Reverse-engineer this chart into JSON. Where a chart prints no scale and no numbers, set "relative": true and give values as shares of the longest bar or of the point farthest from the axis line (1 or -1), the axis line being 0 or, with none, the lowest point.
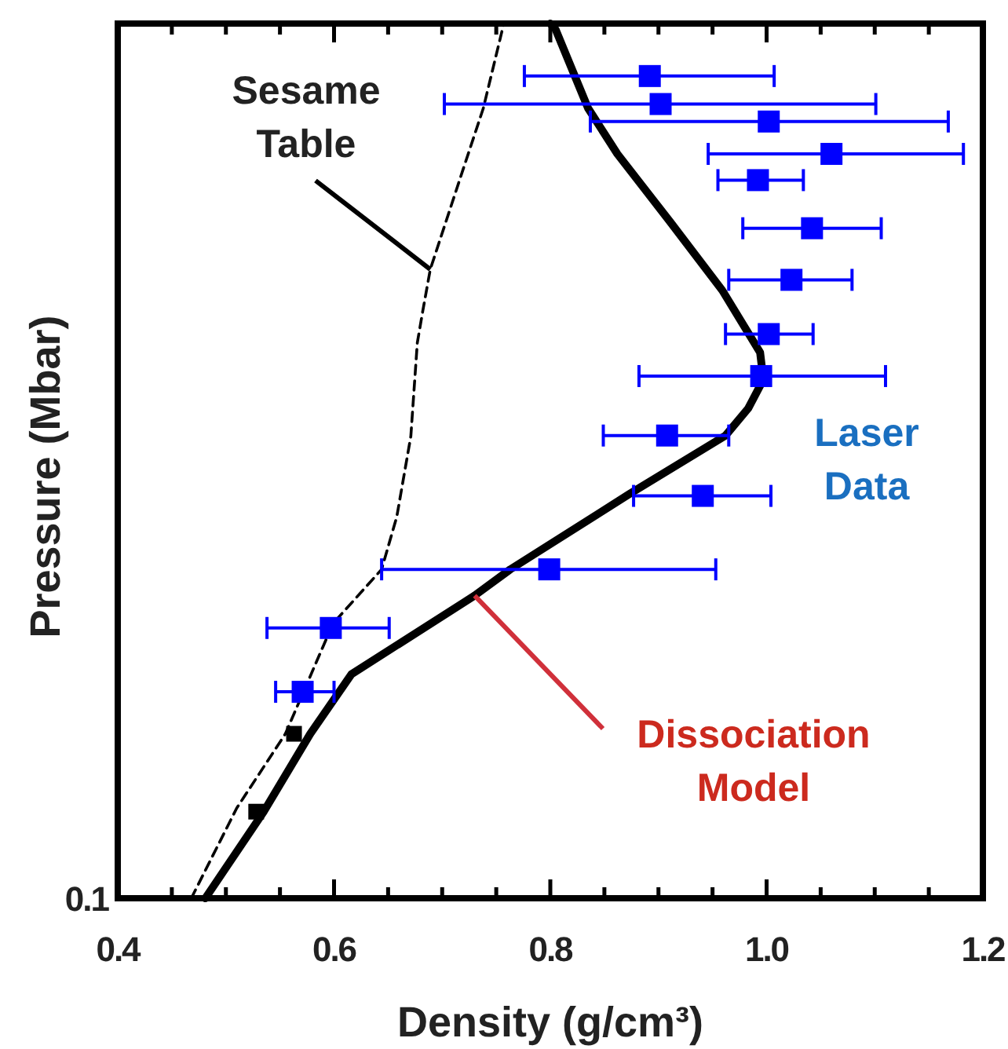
{
  "chart_data": {
    "type": "scatter",
    "xlabel": "Density (g/cm³)",
    "ylabel": "Pressure (Mbar)",
    "relative": true,
    "xlim": [
      0.4,
      1.2
    ],
    "grid": false,
    "annotations": [
      "0.1",
      {
        "text": "Sesame Table",
        "x": 0.689,
        "y": 0.719
      },
      {
        "text": "Dissociation Model",
        "x": 0.73,
        "y": 0.346
      }
    ],
    "xticks": [
      0.4,
      {
        "value": 0.45,
        "label": null
      },
      {
        "value": 0.5,
        "label": null
      },
      {
        "value": 0.55,
        "label": null
      },
      0.6,
      {
        "value": 0.65,
        "label": null
      },
      {
        "value": 0.7,
        "label": null
      },
      {
        "value": 0.75,
        "label": null
      },
      0.8,
      {
        "value": 0.85,
        "label": null
      },
      {
        "value": 0.9,
        "label": null
      },
      {
        "value": 0.95,
        "label": null
      },
      {
        "value": 1,
        "label": "1.0"
      },
      {
        "value": 1.05,
        "label": null
      },
      {
        "value": 1.1,
        "label": null
      },
      {
        "value": 1.15,
        "label": null
      },
      1.2
    ],
    "series": [
      {
        "type": "line",
        "line_style": "dashed",
        "color": "#000000",
        "x": [
          0.468,
          0.51,
          0.555,
          0.599,
          0.644,
          0.658,
          0.671,
          0.677,
          0.682,
          0.689,
          0.719,
          0.738,
          0.757
        ],
        "values": [
          0,
          0.103,
          0.188,
          0.314,
          0.376,
          0.436,
          0.528,
          0.635,
          0.671,
          0.719,
          0.832,
          0.903,
          1.0
        ]
      },
      {
        "type": "line",
        "line_style": "solid",
        "color": "#000000",
        "x": [
          0.481,
          0.535,
          0.578,
          0.616,
          0.73,
          0.763,
          0.873,
          0.962,
          0.983,
          0.997,
          0.994,
          0.959,
          0.911,
          0.862,
          0.835,
          0.805,
          0.8
        ],
        "values": [
          0,
          0.099,
          0.188,
          0.256,
          0.346,
          0.376,
          0.462,
          0.529,
          0.56,
          0.593,
          0.624,
          0.695,
          0.773,
          0.851,
          0.903,
          0.993,
          1.0
        ]
      },
      {
        "name": "Laser Data",
        "marker": "square",
        "color": "#0000ff",
        "x": [
          0.892,
          0.902,
          1.002,
          1.06,
          0.992,
          1.042,
          1.023,
          1.002,
          0.995,
          0.908,
          0.941,
          0.799,
          0.597,
          0.571
        ],
        "values": [
          0.94,
          0.908,
          0.888,
          0.851,
          0.821,
          0.766,
          0.707,
          0.645,
          0.597,
          0.529,
          0.46,
          0.376,
          0.309,
          0.236
        ],
        "xerrors": [
          [
            0.776,
            1.007
          ],
          [
            0.702,
            1.101
          ],
          [
            0.837,
            1.168
          ],
          [
            0.946,
            1.182
          ],
          [
            0.955,
            1.034
          ],
          [
            0.978,
            1.106
          ],
          [
            0.965,
            1.079
          ],
          [
            0.962,
            1.043
          ],
          [
            0.882,
            1.11
          ],
          [
            0.849,
            0.965
          ],
          [
            0.877,
            1.004
          ],
          [
            0.644,
            0.953
          ],
          [
            0.538,
            0.651
          ],
          [
            0.546,
            0.6
          ]
        ]
      },
      {
        "marker": "square",
        "color": "#000000",
        "x": [
          0.563,
          0.528
        ],
        "values": [
          0.188,
          0.099
        ]
      }
    ]
  }
}
